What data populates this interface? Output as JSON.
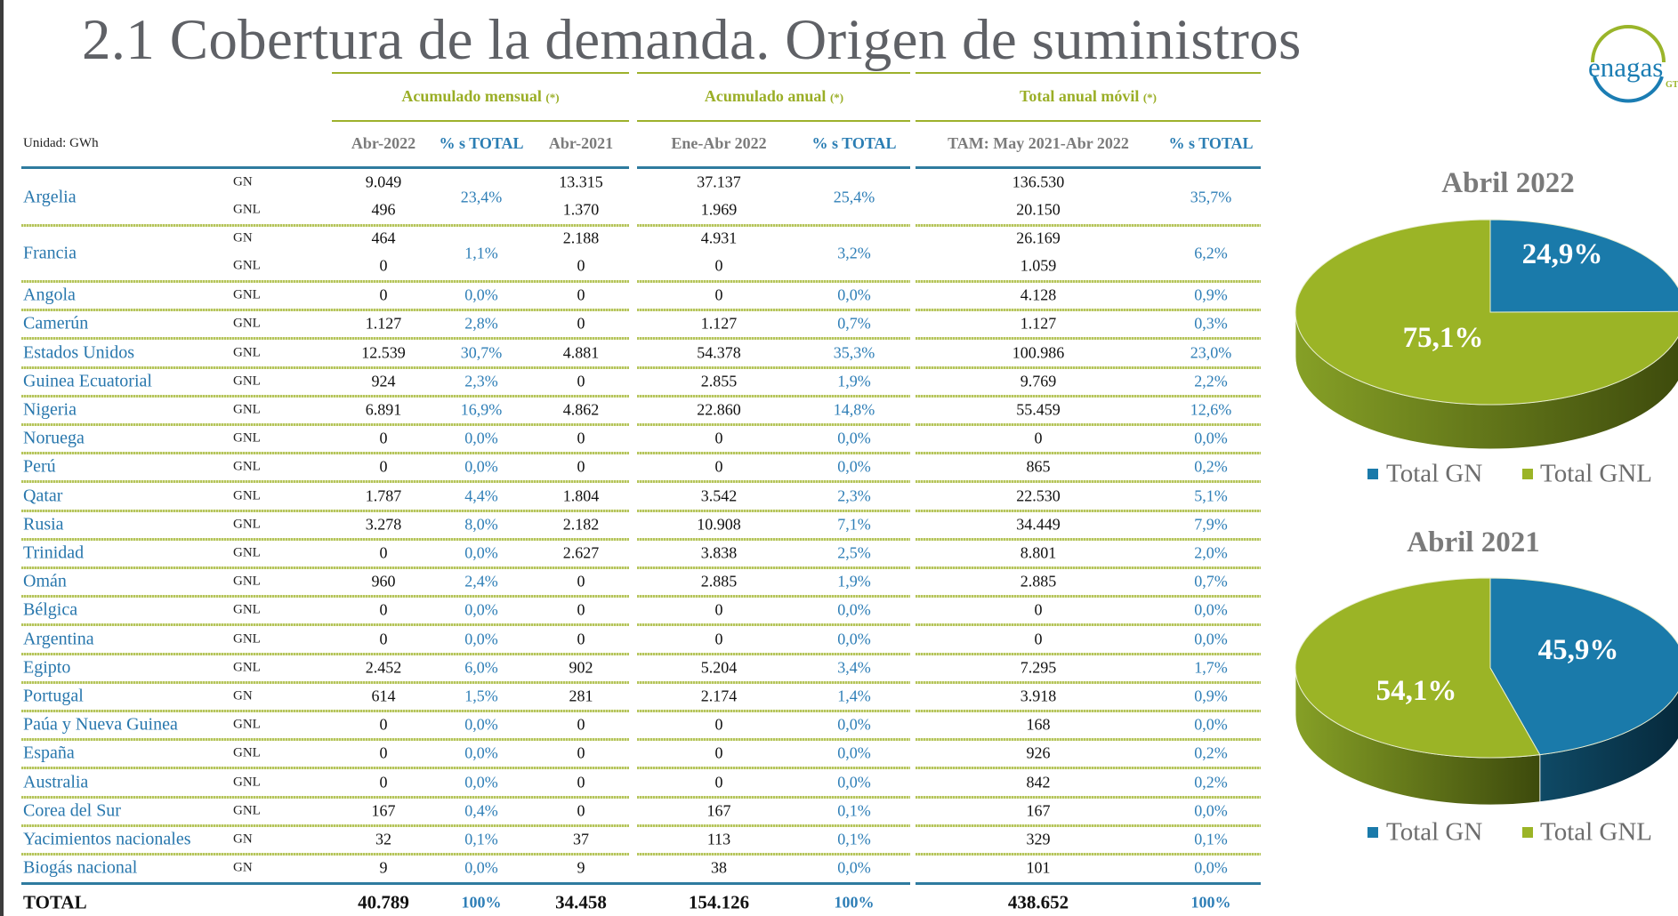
{
  "title": "2.1 Cobertura de la demanda. Origen de suministros",
  "logo": {
    "text": "enagas",
    "sub": "GTS",
    "colors": {
      "blue": "#1b7db3",
      "green": "#9ab52a"
    }
  },
  "table": {
    "unit": "Unidad: GWh",
    "groups": [
      {
        "label": "Acumulado mensual",
        "note": "(*)"
      },
      {
        "label": "Acumulado anual",
        "note": "(*)"
      },
      {
        "label": "Total anual móvil",
        "note": "(*)"
      }
    ],
    "columns": [
      "Abr-2022",
      "% s TOTAL",
      "Abr-2021",
      "Ene-Abr 2022",
      "% s TOTAL",
      "TAM: May 2021-Abr 2022",
      "% s TOTAL"
    ],
    "rows": [
      {
        "country": "Argelia",
        "lines": [
          {
            "type": "GN",
            "abr2022": "9.049",
            "abr2021": "13.315",
            "ene_abr_2022": "37.137",
            "tam": "136.530"
          },
          {
            "type": "GNL",
            "abr2022": "496",
            "abr2021": "1.370",
            "ene_abr_2022": "1.969",
            "tam": "20.150"
          }
        ],
        "pct_mensual": "23,4%",
        "pct_anual": "25,4%",
        "pct_tam": "35,7%"
      },
      {
        "country": "Francia",
        "lines": [
          {
            "type": "GN",
            "abr2022": "464",
            "abr2021": "2.188",
            "ene_abr_2022": "4.931",
            "tam": "26.169"
          },
          {
            "type": "GNL",
            "abr2022": "0",
            "abr2021": "0",
            "ene_abr_2022": "0",
            "tam": "1.059"
          }
        ],
        "pct_mensual": "1,1%",
        "pct_anual": "3,2%",
        "pct_tam": "6,2%"
      },
      {
        "country": "Angola",
        "lines": [
          {
            "type": "GNL",
            "abr2022": "0",
            "abr2021": "0",
            "ene_abr_2022": "0",
            "tam": "4.128"
          }
        ],
        "pct_mensual": "0,0%",
        "pct_anual": "0,0%",
        "pct_tam": "0,9%"
      },
      {
        "country": "Camerún",
        "lines": [
          {
            "type": "GNL",
            "abr2022": "1.127",
            "abr2021": "0",
            "ene_abr_2022": "1.127",
            "tam": "1.127"
          }
        ],
        "pct_mensual": "2,8%",
        "pct_anual": "0,7%",
        "pct_tam": "0,3%"
      },
      {
        "country": "Estados Unidos",
        "lines": [
          {
            "type": "GNL",
            "abr2022": "12.539",
            "abr2021": "4.881",
            "ene_abr_2022": "54.378",
            "tam": "100.986"
          }
        ],
        "pct_mensual": "30,7%",
        "pct_anual": "35,3%",
        "pct_tam": "23,0%"
      },
      {
        "country": "Guinea Ecuatorial",
        "lines": [
          {
            "type": "GNL",
            "abr2022": "924",
            "abr2021": "0",
            "ene_abr_2022": "2.855",
            "tam": "9.769"
          }
        ],
        "pct_mensual": "2,3%",
        "pct_anual": "1,9%",
        "pct_tam": "2,2%"
      },
      {
        "country": "Nigeria",
        "lines": [
          {
            "type": "GNL",
            "abr2022": "6.891",
            "abr2021": "4.862",
            "ene_abr_2022": "22.860",
            "tam": "55.459"
          }
        ],
        "pct_mensual": "16,9%",
        "pct_anual": "14,8%",
        "pct_tam": "12,6%"
      },
      {
        "country": "Noruega",
        "lines": [
          {
            "type": "GNL",
            "abr2022": "0",
            "abr2021": "0",
            "ene_abr_2022": "0",
            "tam": "0"
          }
        ],
        "pct_mensual": "0,0%",
        "pct_anual": "0,0%",
        "pct_tam": "0,0%"
      },
      {
        "country": "Perú",
        "lines": [
          {
            "type": "GNL",
            "abr2022": "0",
            "abr2021": "0",
            "ene_abr_2022": "0",
            "tam": "865"
          }
        ],
        "pct_mensual": "0,0%",
        "pct_anual": "0,0%",
        "pct_tam": "0,2%"
      },
      {
        "country": "Qatar",
        "lines": [
          {
            "type": "GNL",
            "abr2022": "1.787",
            "abr2021": "1.804",
            "ene_abr_2022": "3.542",
            "tam": "22.530"
          }
        ],
        "pct_mensual": "4,4%",
        "pct_anual": "2,3%",
        "pct_tam": "5,1%"
      },
      {
        "country": "Rusia",
        "lines": [
          {
            "type": "GNL",
            "abr2022": "3.278",
            "abr2021": "2.182",
            "ene_abr_2022": "10.908",
            "tam": "34.449"
          }
        ],
        "pct_mensual": "8,0%",
        "pct_anual": "7,1%",
        "pct_tam": "7,9%"
      },
      {
        "country": "Trinidad",
        "lines": [
          {
            "type": "GNL",
            "abr2022": "0",
            "abr2021": "2.627",
            "ene_abr_2022": "3.838",
            "tam": "8.801"
          }
        ],
        "pct_mensual": "0,0%",
        "pct_anual": "2,5%",
        "pct_tam": "2,0%"
      },
      {
        "country": "Omán",
        "lines": [
          {
            "type": "GNL",
            "abr2022": "960",
            "abr2021": "0",
            "ene_abr_2022": "2.885",
            "tam": "2.885"
          }
        ],
        "pct_mensual": "2,4%",
        "pct_anual": "1,9%",
        "pct_tam": "0,7%"
      },
      {
        "country": "Bélgica",
        "lines": [
          {
            "type": "GNL",
            "abr2022": "0",
            "abr2021": "0",
            "ene_abr_2022": "0",
            "tam": "0"
          }
        ],
        "pct_mensual": "0,0%",
        "pct_anual": "0,0%",
        "pct_tam": "0,0%"
      },
      {
        "country": "Argentina",
        "lines": [
          {
            "type": "GNL",
            "abr2022": "0",
            "abr2021": "0",
            "ene_abr_2022": "0",
            "tam": "0"
          }
        ],
        "pct_mensual": "0,0%",
        "pct_anual": "0,0%",
        "pct_tam": "0,0%"
      },
      {
        "country": "Egipto",
        "lines": [
          {
            "type": "GNL",
            "abr2022": "2.452",
            "abr2021": "902",
            "ene_abr_2022": "5.204",
            "tam": "7.295"
          }
        ],
        "pct_mensual": "6,0%",
        "pct_anual": "3,4%",
        "pct_tam": "1,7%"
      },
      {
        "country": "Portugal",
        "lines": [
          {
            "type": "GN",
            "abr2022": "614",
            "abr2021": "281",
            "ene_abr_2022": "2.174",
            "tam": "3.918"
          }
        ],
        "pct_mensual": "1,5%",
        "pct_anual": "1,4%",
        "pct_tam": "0,9%"
      },
      {
        "country": "Paúa y Nueva Guinea",
        "lines": [
          {
            "type": "GNL",
            "abr2022": "0",
            "abr2021": "0",
            "ene_abr_2022": "0",
            "tam": "168"
          }
        ],
        "pct_mensual": "0,0%",
        "pct_anual": "0,0%",
        "pct_tam": "0,0%"
      },
      {
        "country": "España",
        "lines": [
          {
            "type": "GNL",
            "abr2022": "0",
            "abr2021": "0",
            "ene_abr_2022": "0",
            "tam": "926"
          }
        ],
        "pct_mensual": "0,0%",
        "pct_anual": "0,0%",
        "pct_tam": "0,2%"
      },
      {
        "country": "Australia",
        "lines": [
          {
            "type": "GNL",
            "abr2022": "0",
            "abr2021": "0",
            "ene_abr_2022": "0",
            "tam": "842"
          }
        ],
        "pct_mensual": "0,0%",
        "pct_anual": "0,0%",
        "pct_tam": "0,2%"
      },
      {
        "country": "Corea del Sur",
        "lines": [
          {
            "type": "GNL",
            "abr2022": "167",
            "abr2021": "0",
            "ene_abr_2022": "167",
            "tam": "167"
          }
        ],
        "pct_mensual": "0,4%",
        "pct_anual": "0,1%",
        "pct_tam": "0,0%"
      },
      {
        "country": "Yacimientos nacionales",
        "lines": [
          {
            "type": "GN",
            "abr2022": "32",
            "abr2021": "37",
            "ene_abr_2022": "113",
            "tam": "329"
          }
        ],
        "pct_mensual": "0,1%",
        "pct_anual": "0,1%",
        "pct_tam": "0,1%"
      },
      {
        "country": "Biogás nacional",
        "lines": [
          {
            "type": "GN",
            "abr2022": "9",
            "abr2021": "9",
            "ene_abr_2022": "38",
            "tam": "101"
          }
        ],
        "pct_mensual": "0,0%",
        "pct_anual": "0,0%",
        "pct_tam": "0,0%"
      }
    ],
    "total": {
      "label": "TOTAL",
      "abr2022": "40.789",
      "pct_mensual": "100%",
      "abr2021": "34.458",
      "ene_abr_2022": "154.126",
      "pct_anual": "100%",
      "tam": "438.652",
      "pct_tam": "100%"
    }
  },
  "chart_data": [
    {
      "type": "pie",
      "title": "Abril 2022",
      "categories": [
        "Total GN",
        "Total GNL"
      ],
      "values": [
        24.9,
        75.1
      ],
      "labels": [
        "24,9%",
        "75,1%"
      ],
      "colors": [
        "#1a7aaa",
        "#9bb426"
      ],
      "legend": "bottom",
      "style": "3d"
    },
    {
      "type": "pie",
      "title": "Abril 2021",
      "categories": [
        "Total GN",
        "Total GNL"
      ],
      "values": [
        45.9,
        54.1
      ],
      "labels": [
        "45,9%",
        "54,1%"
      ],
      "colors": [
        "#1a7aaa",
        "#9bb426"
      ],
      "legend": "bottom",
      "style": "3d"
    }
  ]
}
